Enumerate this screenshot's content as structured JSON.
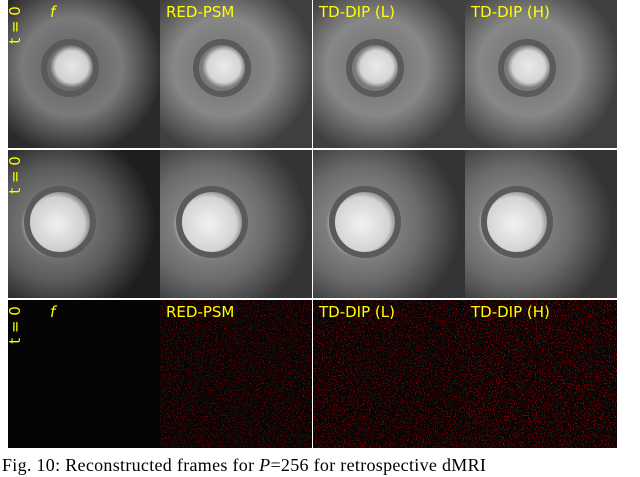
{
  "figure": {
    "rows": [
      {
        "row_label": "t = 0",
        "panels": [
          "f",
          "RED-PSM",
          "TD-DIP (L)",
          "TD-DIP (H)"
        ]
      },
      {
        "row_label": "t = 0"
      },
      {
        "row_label": "t = 0",
        "panels": [
          "f",
          "RED-PSM",
          "TD-DIP (L)",
          "TD-DIP (H)"
        ]
      }
    ]
  },
  "caption": {
    "label": "Fig. 10:",
    "text_before": "Reconstructed frames for",
    "variable": "P",
    "text_after": "=256 for retrospective dMRI"
  }
}
